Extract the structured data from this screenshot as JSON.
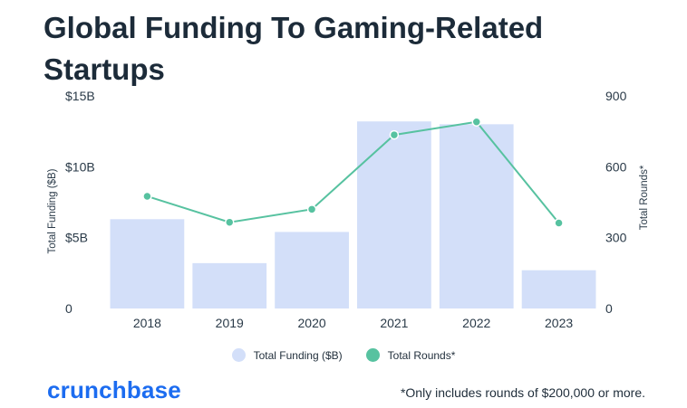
{
  "title": "Global Funding To Gaming-Related Startups",
  "legend": {
    "funding_label": "Total Funding ($B)",
    "rounds_label": "Total Rounds*"
  },
  "brand": "crunchbase",
  "footnote": "*Only includes rounds of $200,000 or more.",
  "colors": {
    "bar": "#d3dff9",
    "line": "#57c2a0",
    "title": "#1c2b39",
    "brand": "#1c6cf0"
  },
  "chart_data": {
    "type": "bar",
    "title": "Global Funding To Gaming-Related Startups",
    "categories": [
      "2018",
      "2019",
      "2020",
      "2021",
      "2022",
      "2023"
    ],
    "series": [
      {
        "name": "Total Funding ($B)",
        "type": "bar",
        "axis": "left",
        "values": [
          6.3,
          3.2,
          5.4,
          13.2,
          13.0,
          2.7
        ]
      },
      {
        "name": "Total Rounds*",
        "type": "line",
        "axis": "right",
        "values": [
          475,
          365,
          420,
          735,
          790,
          362
        ]
      }
    ],
    "ylabel": "Total Funding ($B)",
    "y2label": "Total Rounds*",
    "ylim": [
      0,
      15
    ],
    "y2lim": [
      0,
      900
    ],
    "yticks": [
      "0",
      "$5B",
      "$10B",
      "$15B"
    ],
    "y2ticks": [
      "0",
      "300",
      "600",
      "900"
    ],
    "grid": false,
    "legend_position": "bottom"
  }
}
